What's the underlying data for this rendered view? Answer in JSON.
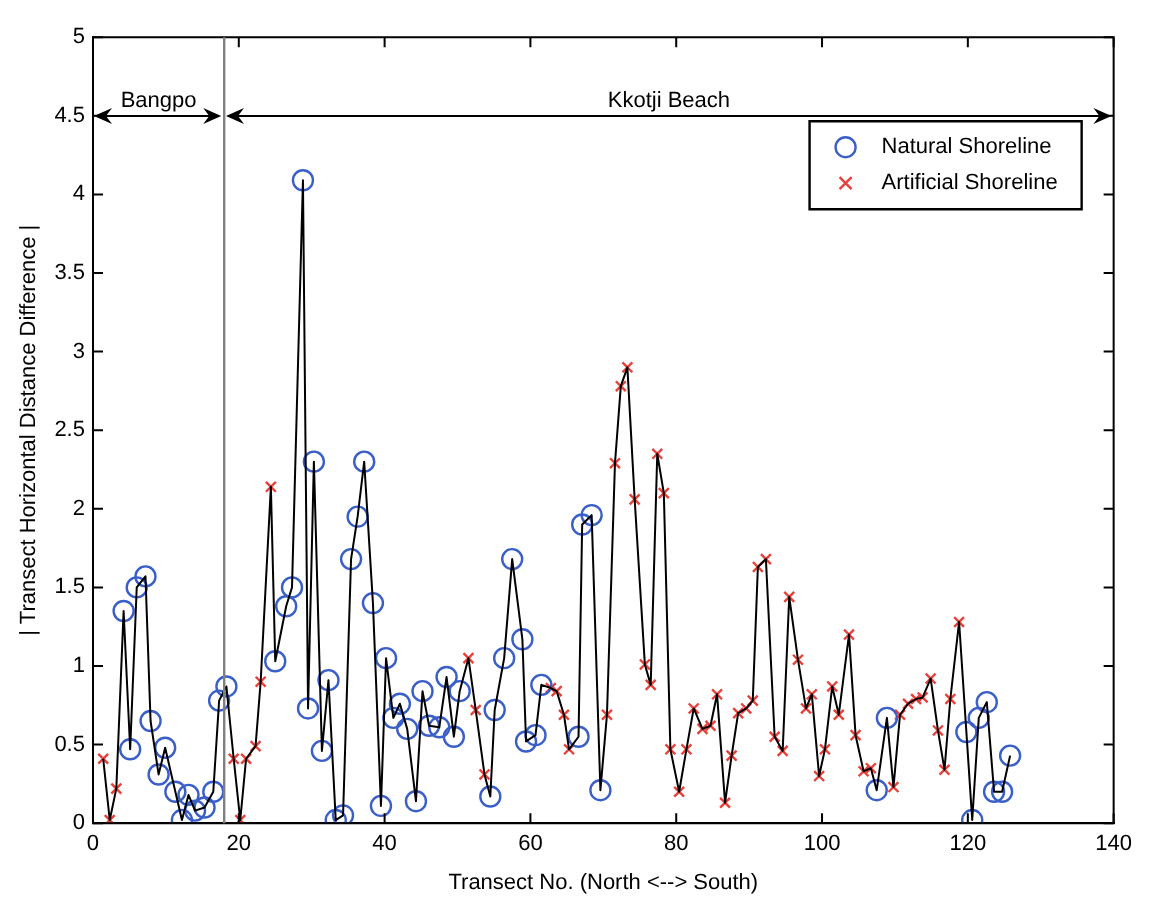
{
  "chart_data": {
    "type": "line",
    "xlabel": "Transect No. (North <--> South)",
    "ylabel": "| Transect Horizontal Distance Difference |",
    "xlim": [
      0,
      140
    ],
    "xticks": [
      0,
      20,
      40,
      60,
      80,
      100,
      120,
      140
    ],
    "ylim": [
      0,
      5
    ],
    "yticks": [
      0,
      0.5,
      1,
      1.5,
      2,
      2.5,
      3,
      3.5,
      4,
      4.5,
      5
    ],
    "legend": "top right",
    "ref_lines": [
      {
        "axis": "x",
        "value": 18,
        "color": "#808080"
      }
    ],
    "annotations": [
      "Bangpo",
      "Kkotji Beach"
    ],
    "series": [
      {
        "color": "#000000",
        "marker": "none",
        "x": [
          1.4,
          2.3,
          3.2,
          4.2,
          5.1,
          6.0,
          7.2,
          7.9,
          9.0,
          9.9,
          11.3,
          12.2,
          13.1,
          14.0,
          15.3,
          16.5,
          17.3,
          18.3,
          19.3,
          20.2,
          21.0,
          22.3,
          23.0,
          24.4,
          25.0,
          26.5,
          27.3,
          28.8,
          29.5,
          30.3,
          31.4,
          32.3,
          33.3,
          34.3,
          35.4,
          36.3,
          37.2,
          38.4,
          39.5,
          40.2,
          41.2,
          42.1,
          43.1,
          44.3,
          45.2,
          46.1,
          47.5,
          48.5,
          49.5,
          50.3,
          51.5,
          52.5,
          53.7,
          54.5,
          55.1,
          56.4,
          57.5,
          58.9,
          59.4,
          60.7,
          61.5,
          62.8,
          63.6,
          64.6,
          65.3,
          66.6,
          67.1,
          68.4,
          69.6,
          70.5,
          71.6,
          72.4,
          73.3,
          74.3,
          75.7,
          76.5,
          77.4,
          78.3,
          79.2,
          80.4,
          81.4,
          82.4,
          83.6,
          84.7,
          85.6,
          86.7,
          87.6,
          88.5,
          89.6,
          90.5,
          91.2,
          92.3,
          93.5,
          94.6,
          95.5,
          96.7,
          97.8,
          98.6,
          99.6,
          100.4,
          101.4,
          102.3,
          103.7,
          104.6,
          105.7,
          106.7,
          107.5,
          108.9,
          109.8,
          110.7,
          111.8,
          112.9,
          113.8,
          114.9,
          115.9,
          116.8,
          117.6,
          118.8,
          119.8,
          120.6,
          121.5,
          122.6,
          123.6,
          124.7,
          125.8
        ],
        "values": [
          0.41,
          0.02,
          0.22,
          1.35,
          0.47,
          1.5,
          1.57,
          0.65,
          0.31,
          0.48,
          0.2,
          0.02,
          0.18,
          0.08,
          0.1,
          0.2,
          0.78,
          0.87,
          0.41,
          0.02,
          0.41,
          0.49,
          0.9,
          2.14,
          1.03,
          1.38,
          1.5,
          4.09,
          0.73,
          2.3,
          0.46,
          0.91,
          0.02,
          0.05,
          1.68,
          1.95,
          2.3,
          1.4,
          0.11,
          1.05,
          0.67,
          0.76,
          0.6,
          0.14,
          0.84,
          0.62,
          0.61,
          0.93,
          0.55,
          0.84,
          1.05,
          0.72,
          0.31,
          0.17,
          0.72,
          1.05,
          1.68,
          1.17,
          0.52,
          0.56,
          0.88,
          0.86,
          0.84,
          0.69,
          0.47,
          0.55,
          1.9,
          1.96,
          0.21,
          0.69,
          2.29,
          2.78,
          2.9,
          2.06,
          1.01,
          0.88,
          2.35,
          2.1,
          0.47,
          0.2,
          0.47,
          0.73,
          0.6,
          0.62,
          0.82,
          0.13,
          0.43,
          0.7,
          0.73,
          0.78,
          1.63,
          1.68,
          0.55,
          0.46,
          1.44,
          1.04,
          0.73,
          0.82,
          0.3,
          0.47,
          0.87,
          0.69,
          1.2,
          0.56,
          0.33,
          0.35,
          0.21,
          0.67,
          0.23,
          0.69,
          0.76,
          0.79,
          0.8,
          0.92,
          0.59,
          0.34,
          0.79,
          1.28,
          0.58,
          0.02,
          0.67,
          0.77,
          0.2,
          0.2,
          0.43
        ]
      },
      {
        "type": "scatter",
        "name": "Natural Shoreline",
        "color": "#3a5fc8",
        "marker": "circle",
        "x": [
          4.2,
          5.1,
          6.0,
          7.2,
          7.9,
          9.0,
          9.9,
          11.3,
          12.2,
          13.1,
          14.0,
          15.3,
          16.5,
          17.3,
          18.3,
          25.0,
          26.5,
          27.3,
          28.8,
          29.5,
          30.3,
          31.4,
          32.3,
          33.3,
          34.3,
          35.4,
          36.3,
          37.2,
          38.4,
          39.5,
          40.2,
          41.2,
          42.1,
          43.1,
          44.3,
          45.2,
          46.1,
          47.5,
          48.5,
          49.5,
          50.3,
          54.5,
          55.1,
          56.4,
          57.5,
          58.9,
          59.4,
          60.7,
          61.5,
          66.6,
          67.1,
          68.4,
          69.6,
          107.5,
          108.9,
          119.8,
          120.6,
          121.5,
          122.6,
          123.6,
          124.7,
          125.8
        ],
        "values": [
          1.35,
          0.47,
          1.5,
          1.57,
          0.65,
          0.31,
          0.48,
          0.2,
          0.02,
          0.18,
          0.08,
          0.1,
          0.2,
          0.78,
          0.87,
          1.03,
          1.38,
          1.5,
          4.09,
          0.73,
          2.3,
          0.46,
          0.91,
          0.02,
          0.05,
          1.68,
          1.95,
          2.3,
          1.4,
          0.11,
          1.05,
          0.67,
          0.76,
          0.6,
          0.14,
          0.84,
          0.62,
          0.61,
          0.93,
          0.55,
          0.84,
          0.17,
          0.72,
          1.05,
          1.68,
          1.17,
          0.52,
          0.56,
          0.88,
          0.55,
          1.9,
          1.96,
          0.21,
          0.21,
          0.67,
          0.58,
          0.02,
          0.67,
          0.77,
          0.2,
          0.2,
          0.43
        ]
      },
      {
        "type": "scatter",
        "name": "Artificial Shoreline",
        "color": "#e8413c",
        "marker": "cross",
        "x": [
          1.4,
          2.3,
          3.2,
          19.3,
          20.2,
          21.0,
          22.3,
          23.0,
          24.4,
          51.5,
          52.5,
          53.7,
          62.8,
          63.6,
          64.6,
          65.3,
          70.5,
          71.6,
          72.4,
          73.3,
          74.3,
          75.7,
          76.5,
          77.4,
          78.3,
          79.2,
          80.4,
          81.4,
          82.4,
          83.6,
          84.7,
          85.6,
          86.7,
          87.6,
          88.5,
          89.6,
          90.5,
          91.2,
          92.3,
          93.5,
          94.6,
          95.5,
          96.7,
          97.8,
          98.6,
          99.6,
          100.4,
          101.4,
          102.3,
          103.7,
          104.6,
          105.7,
          106.7,
          109.8,
          110.7,
          111.8,
          112.9,
          113.8,
          114.9,
          115.9,
          116.8,
          117.6,
          118.8
        ],
        "values": [
          0.41,
          0.02,
          0.22,
          0.41,
          0.02,
          0.41,
          0.49,
          0.9,
          2.14,
          1.05,
          0.72,
          0.31,
          0.86,
          0.84,
          0.69,
          0.47,
          0.69,
          2.29,
          2.78,
          2.9,
          2.06,
          1.01,
          0.88,
          2.35,
          2.1,
          0.47,
          0.2,
          0.47,
          0.73,
          0.6,
          0.62,
          0.82,
          0.13,
          0.43,
          0.7,
          0.73,
          0.78,
          1.63,
          1.68,
          0.55,
          0.46,
          1.44,
          1.04,
          0.73,
          0.82,
          0.3,
          0.47,
          0.87,
          0.69,
          1.2,
          0.56,
          0.33,
          0.35,
          0.23,
          0.69,
          0.76,
          0.79,
          0.8,
          0.92,
          0.59,
          0.34,
          0.79,
          1.28
        ]
      }
    ]
  }
}
